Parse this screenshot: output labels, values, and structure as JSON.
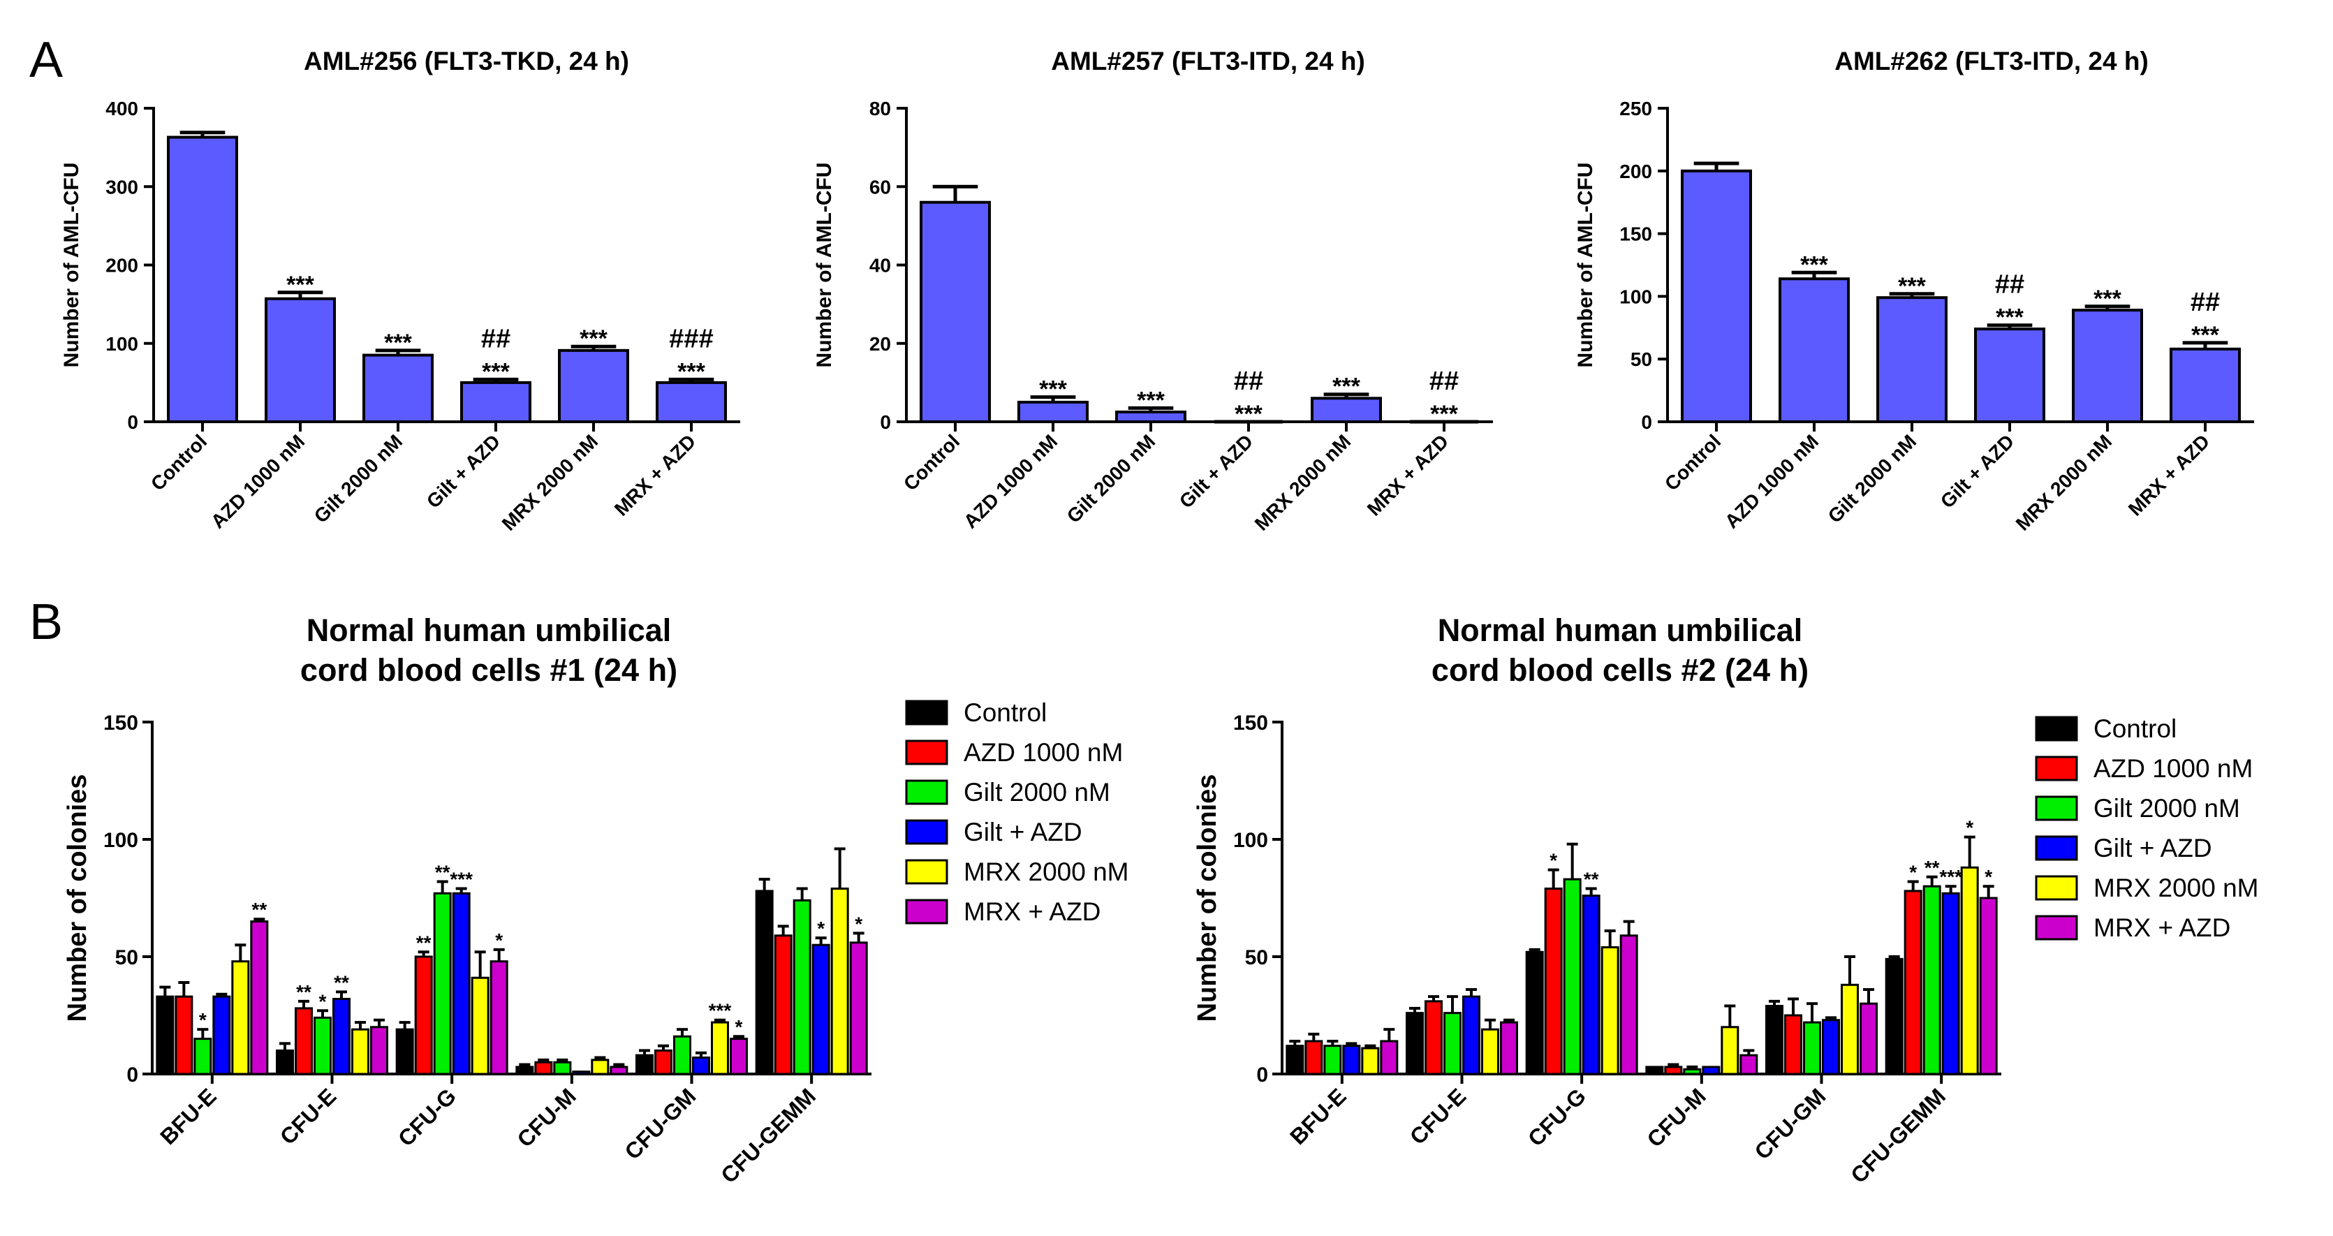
{
  "panel_labels": {
    "a": "A",
    "b": "B"
  },
  "colors": {
    "bar_fill_a": "#5b5bff",
    "Control": "#000000",
    "AZD 1000 nM": "#ff0000",
    "Gilt 2000 nM": "#00ee00",
    "Gilt + AZD": "#0000ff",
    "MRX 2000 nM": "#ffff00",
    "MRX + AZD": "#cc00cc"
  },
  "chart_data": [
    {
      "panel": "A",
      "type": "bar",
      "title": "AML#256 (FLT3-TKD, 24 h)",
      "xlabel": "",
      "ylabel": "Number of AML-CFU",
      "ylim": [
        0,
        400
      ],
      "yticks": [
        0,
        100,
        200,
        300,
        400
      ],
      "categories": [
        "Control",
        "AZD 1000 nM",
        "Gilt 2000 nM",
        "Gilt + AZD",
        "MRX 2000 nM",
        "MRX + AZD"
      ],
      "values": [
        363,
        157,
        85,
        50,
        91,
        50
      ],
      "errors": [
        6,
        8,
        6,
        4,
        5,
        4
      ],
      "stars": [
        "",
        "***",
        "***",
        "***",
        "***",
        "***"
      ],
      "hashes": [
        "",
        "",
        "",
        "##",
        "",
        "###"
      ]
    },
    {
      "panel": "A",
      "type": "bar",
      "title": "AML#257 (FLT3-ITD, 24 h)",
      "xlabel": "",
      "ylabel": "Number of AML-CFU",
      "ylim": [
        0,
        80
      ],
      "yticks": [
        0,
        20,
        40,
        60,
        80
      ],
      "categories": [
        "Control",
        "AZD 1000 nM",
        "Gilt 2000 nM",
        "Gilt + AZD",
        "MRX 2000 nM",
        "MRX + AZD"
      ],
      "values": [
        56,
        5,
        2.5,
        0,
        6,
        0
      ],
      "errors": [
        4,
        1.3,
        1,
        0,
        1,
        0
      ],
      "stars": [
        "",
        "***",
        "***",
        "***",
        "***",
        "***"
      ],
      "hashes": [
        "",
        "",
        "",
        "##",
        "",
        "##"
      ]
    },
    {
      "panel": "A",
      "type": "bar",
      "title": "AML#262 (FLT3-ITD, 24 h)",
      "xlabel": "",
      "ylabel": "Number of AML-CFU",
      "ylim": [
        0,
        250
      ],
      "yticks": [
        0,
        50,
        100,
        150,
        200,
        250
      ],
      "categories": [
        "Control",
        "AZD 1000 nM",
        "Gilt 2000 nM",
        "Gilt + AZD",
        "MRX 2000 nM",
        "MRX + AZD"
      ],
      "values": [
        200,
        114,
        99,
        74,
        89,
        58
      ],
      "errors": [
        6,
        5,
        3,
        3,
        3,
        5
      ],
      "stars": [
        "",
        "***",
        "***",
        "***",
        "***",
        "***"
      ],
      "hashes": [
        "",
        "",
        "",
        "##",
        "",
        "##"
      ]
    },
    {
      "panel": "B",
      "type": "bar",
      "title_lines": [
        "Normal human umbilical",
        "cord blood cells #1 (24 h)"
      ],
      "xlabel": "",
      "ylabel": "Number of colonies",
      "ylim": [
        0,
        150
      ],
      "yticks": [
        0,
        50,
        100,
        150
      ],
      "categories": [
        "BFU-E",
        "CFU-E",
        "CFU-G",
        "CFU-M",
        "CFU-GM",
        "CFU-GEMM"
      ],
      "series": [
        {
          "name": "Control",
          "values": [
            33,
            10,
            19,
            3,
            8,
            78
          ],
          "errors": [
            4,
            3,
            3,
            1,
            2,
            5
          ],
          "stars": [
            "",
            "",
            "",
            "",
            "",
            ""
          ]
        },
        {
          "name": "AZD 1000 nM",
          "values": [
            33,
            28,
            50,
            5,
            10,
            59
          ],
          "errors": [
            6,
            3,
            2,
            1,
            2,
            4
          ],
          "stars": [
            "",
            "**",
            "**",
            "",
            "",
            ""
          ]
        },
        {
          "name": "Gilt 2000 nM",
          "values": [
            15,
            24,
            77,
            5,
            16,
            74
          ],
          "errors": [
            4,
            3,
            5,
            1,
            3,
            5
          ],
          "stars": [
            "*",
            "*",
            "**",
            "",
            "",
            ""
          ]
        },
        {
          "name": "Gilt + AZD",
          "values": [
            33,
            32,
            77,
            1,
            7,
            55
          ],
          "errors": [
            1,
            3,
            2,
            0,
            2,
            3
          ],
          "stars": [
            "",
            "**",
            "***",
            "",
            "",
            "*"
          ]
        },
        {
          "name": "MRX 2000 nM",
          "values": [
            48,
            19,
            41,
            6,
            22,
            79
          ],
          "errors": [
            7,
            3,
            11,
            1,
            1,
            17
          ],
          "stars": [
            "",
            "",
            "",
            "",
            "***",
            ""
          ]
        },
        {
          "name": "MRX + AZD",
          "values": [
            65,
            20,
            48,
            3,
            15,
            56
          ],
          "errors": [
            1,
            3,
            5,
            1,
            1,
            4
          ],
          "stars": [
            "**",
            "",
            "*",
            "",
            "*",
            "*"
          ]
        }
      ]
    },
    {
      "panel": "B",
      "type": "bar",
      "title_lines": [
        "Normal human umbilical",
        "cord blood cells #2 (24 h)"
      ],
      "xlabel": "",
      "ylabel": "Number of colonies",
      "ylim": [
        0,
        150
      ],
      "yticks": [
        0,
        50,
        100,
        150
      ],
      "categories": [
        "BFU-E",
        "CFU-E",
        "CFU-G",
        "CFU-M",
        "CFU-GM",
        "CFU-GEMM"
      ],
      "series": [
        {
          "name": "Control",
          "values": [
            12,
            26,
            52,
            3,
            29,
            49
          ],
          "errors": [
            2,
            2,
            1,
            0,
            2,
            1
          ],
          "stars": [
            "",
            "",
            "",
            "",
            "",
            ""
          ]
        },
        {
          "name": "AZD 1000 nM",
          "values": [
            14,
            31,
            79,
            3,
            25,
            78
          ],
          "errors": [
            3,
            2,
            8,
            1,
            7,
            4
          ],
          "stars": [
            "",
            "",
            "*",
            "",
            "",
            "*"
          ]
        },
        {
          "name": "Gilt 2000 nM",
          "values": [
            12,
            26,
            83,
            2,
            22,
            80
          ],
          "errors": [
            2,
            7,
            15,
            1,
            8,
            4
          ],
          "stars": [
            "",
            "",
            "",
            "",
            "",
            "**"
          ]
        },
        {
          "name": "Gilt + AZD",
          "values": [
            12,
            33,
            76,
            3,
            23,
            77
          ],
          "errors": [
            1,
            3,
            3,
            0,
            1,
            3
          ],
          "stars": [
            "",
            "",
            "**",
            "",
            "",
            "***"
          ]
        },
        {
          "name": "MRX 2000 nM",
          "values": [
            11,
            19,
            54,
            20,
            38,
            88
          ],
          "errors": [
            1,
            4,
            7,
            9,
            12,
            13
          ],
          "stars": [
            "",
            "",
            "",
            "",
            "",
            "*"
          ]
        },
        {
          "name": "MRX + AZD",
          "values": [
            14,
            22,
            59,
            8,
            30,
            75
          ],
          "errors": [
            5,
            1,
            6,
            2,
            6,
            5
          ],
          "stars": [
            "",
            "",
            "",
            "",
            "",
            "*"
          ]
        }
      ]
    }
  ]
}
